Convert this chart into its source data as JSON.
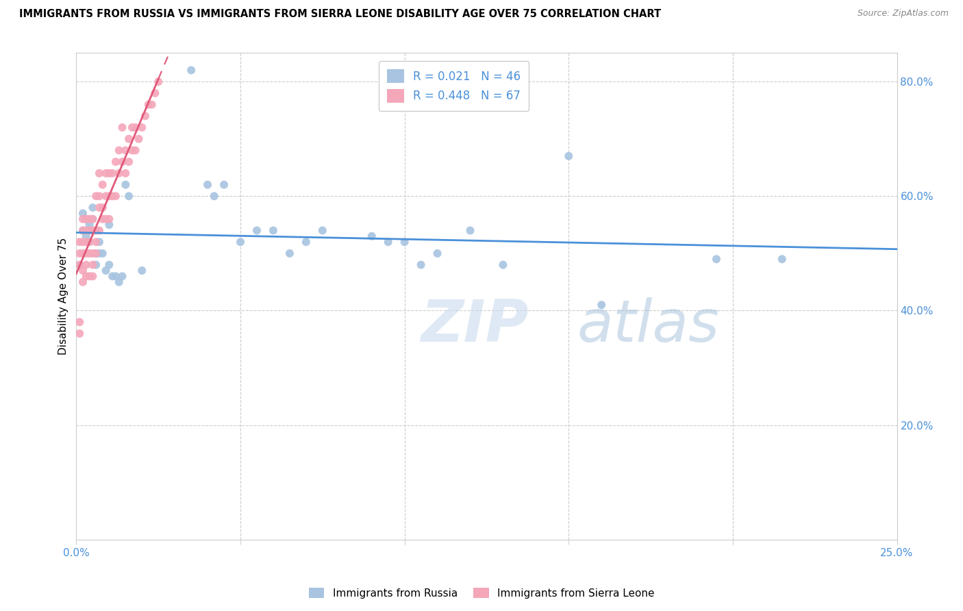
{
  "title": "IMMIGRANTS FROM RUSSIA VS IMMIGRANTS FROM SIERRA LEONE DISABILITY AGE OVER 75 CORRELATION CHART",
  "source": "Source: ZipAtlas.com",
  "ylabel": "Disability Age Over 75",
  "xlabel_russia": "Immigrants from Russia",
  "xlabel_sierraleone": "Immigrants from Sierra Leone",
  "x_min": 0.0,
  "x_max": 0.25,
  "y_min": 0.0,
  "y_max": 0.85,
  "R_russia": 0.021,
  "N_russia": 46,
  "R_sierraleone": 0.448,
  "N_sierraleone": 67,
  "color_russia": "#a8c4e0",
  "color_sierraleone": "#f4a7b9",
  "line_color_russia": "#4a90d9",
  "line_color_sierraleone": "#e05878",
  "russia_x": [
    0.001,
    0.002,
    0.002,
    0.003,
    0.003,
    0.003,
    0.004,
    0.004,
    0.005,
    0.005,
    0.006,
    0.006,
    0.007,
    0.007,
    0.008,
    0.009,
    0.01,
    0.01,
    0.011,
    0.012,
    0.013,
    0.014,
    0.015,
    0.016,
    0.02,
    0.035,
    0.04,
    0.042,
    0.045,
    0.05,
    0.055,
    0.06,
    0.065,
    0.07,
    0.075,
    0.09,
    0.095,
    0.1,
    0.105,
    0.11,
    0.12,
    0.13,
    0.15,
    0.16,
    0.195,
    0.215
  ],
  "russia_y": [
    0.48,
    0.54,
    0.57,
    0.56,
    0.53,
    0.56,
    0.55,
    0.52,
    0.58,
    0.56,
    0.5,
    0.48,
    0.52,
    0.5,
    0.5,
    0.47,
    0.55,
    0.48,
    0.46,
    0.46,
    0.45,
    0.46,
    0.62,
    0.6,
    0.47,
    0.82,
    0.62,
    0.6,
    0.62,
    0.52,
    0.54,
    0.54,
    0.5,
    0.52,
    0.54,
    0.53,
    0.52,
    0.52,
    0.48,
    0.5,
    0.54,
    0.48,
    0.67,
    0.41,
    0.49,
    0.49
  ],
  "sierraleone_x": [
    0.001,
    0.001,
    0.001,
    0.001,
    0.001,
    0.002,
    0.002,
    0.002,
    0.002,
    0.002,
    0.002,
    0.003,
    0.003,
    0.003,
    0.003,
    0.003,
    0.003,
    0.004,
    0.004,
    0.004,
    0.004,
    0.004,
    0.005,
    0.005,
    0.005,
    0.005,
    0.005,
    0.006,
    0.006,
    0.006,
    0.006,
    0.007,
    0.007,
    0.007,
    0.007,
    0.008,
    0.008,
    0.008,
    0.009,
    0.009,
    0.009,
    0.01,
    0.01,
    0.01,
    0.011,
    0.011,
    0.012,
    0.012,
    0.013,
    0.013,
    0.014,
    0.014,
    0.015,
    0.015,
    0.016,
    0.016,
    0.017,
    0.017,
    0.018,
    0.018,
    0.019,
    0.02,
    0.021,
    0.022,
    0.023,
    0.024,
    0.025
  ],
  "sierraleone_y": [
    0.36,
    0.38,
    0.48,
    0.5,
    0.52,
    0.45,
    0.47,
    0.5,
    0.52,
    0.54,
    0.56,
    0.46,
    0.48,
    0.5,
    0.52,
    0.54,
    0.56,
    0.46,
    0.5,
    0.52,
    0.54,
    0.56,
    0.46,
    0.48,
    0.5,
    0.54,
    0.56,
    0.5,
    0.52,
    0.54,
    0.6,
    0.54,
    0.58,
    0.6,
    0.64,
    0.56,
    0.58,
    0.62,
    0.56,
    0.6,
    0.64,
    0.56,
    0.6,
    0.64,
    0.6,
    0.64,
    0.6,
    0.66,
    0.64,
    0.68,
    0.66,
    0.72,
    0.64,
    0.68,
    0.66,
    0.7,
    0.68,
    0.72,
    0.68,
    0.72,
    0.7,
    0.72,
    0.74,
    0.76,
    0.76,
    0.78,
    0.8
  ]
}
